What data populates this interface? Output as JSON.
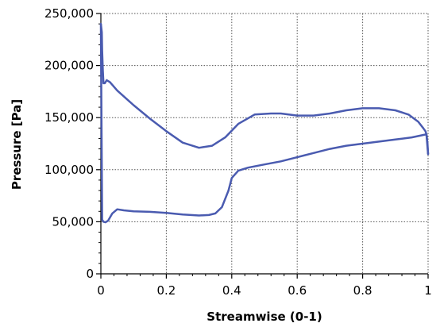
{
  "chart_data": {
    "type": "line",
    "title": "",
    "xlabel": "Streamwise (0-1)",
    "ylabel": "Pressure [Pa]",
    "xlim": [
      0,
      1
    ],
    "ylim": [
      0,
      250000
    ],
    "grid": true,
    "x_ticks": [
      0,
      0.2,
      0.4,
      0.6,
      0.8,
      1
    ],
    "x_tick_labels": [
      "0",
      "0.2",
      "0.4",
      "0.6",
      "0.8",
      "1"
    ],
    "y_ticks": [
      0,
      50000,
      100000,
      150000,
      200000,
      250000
    ],
    "y_tick_labels": [
      "0",
      "50,000",
      "100,000",
      "150,000",
      "200,000",
      "250,000"
    ],
    "series_color": "#4a5bb0",
    "series": [
      {
        "x": [
          0.0,
          0.003,
          0.004,
          0.006,
          0.008,
          0.012,
          0.018,
          0.028,
          0.05,
          0.1,
          0.15,
          0.2,
          0.25,
          0.3,
          0.34,
          0.38,
          0.42,
          0.47,
          0.52,
          0.55,
          0.6,
          0.65,
          0.7,
          0.75,
          0.8,
          0.85,
          0.9,
          0.94,
          0.97,
          0.985,
          0.992,
          0.995,
          0.998,
          1.0
        ],
        "y": [
          240000,
          232000,
          215000,
          195000,
          183000,
          183000,
          186000,
          184000,
          176000,
          162000,
          149000,
          137000,
          126000,
          121000,
          123000,
          131000,
          144000,
          153000,
          154000,
          154000,
          152000,
          152000,
          154000,
          157000,
          159000,
          159000,
          157000,
          153000,
          146000,
          140000,
          137000,
          134000,
          126000,
          115000
        ]
      },
      {
        "x": [
          0.0,
          0.004,
          0.008,
          0.014,
          0.022,
          0.035,
          0.05,
          0.07,
          0.1,
          0.15,
          0.2,
          0.25,
          0.3,
          0.33,
          0.35,
          0.37,
          0.39,
          0.4,
          0.42,
          0.45,
          0.5,
          0.55,
          0.6,
          0.65,
          0.7,
          0.75,
          0.8,
          0.85,
          0.9,
          0.95,
          0.98,
          0.995,
          1.0
        ],
        "y": [
          240000,
          52000,
          50000,
          49500,
          51000,
          58000,
          62000,
          61000,
          60000,
          59500,
          58500,
          57000,
          56000,
          56500,
          58000,
          64000,
          80000,
          92000,
          99000,
          102000,
          105000,
          108000,
          112000,
          116000,
          120000,
          123000,
          125000,
          127000,
          129000,
          131000,
          133000,
          134000,
          115000
        ]
      }
    ]
  }
}
